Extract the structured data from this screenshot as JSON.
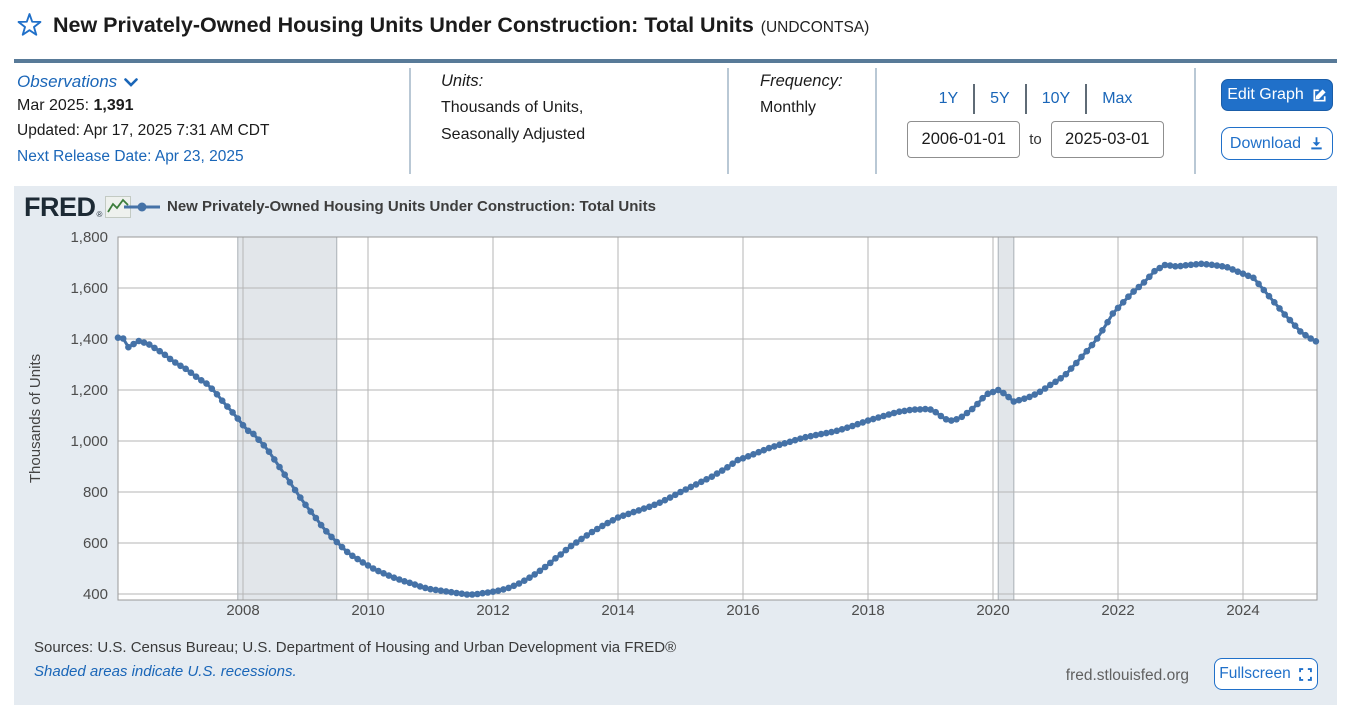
{
  "header": {
    "title": "New Privately-Owned Housing Units Under Construction: Total Units",
    "series_id": "(UNDCONTSA)"
  },
  "observations": {
    "label": "Observations",
    "latest_date": "Mar 2025:",
    "latest_value": "1,391",
    "updated": "Updated: Apr 17, 2025 7:31 AM CDT",
    "next_release": "Next Release Date: Apr 23, 2025"
  },
  "units": {
    "label": "Units:",
    "line1": "Thousands of Units,",
    "line2": "Seasonally Adjusted"
  },
  "frequency": {
    "label": "Frequency:",
    "value": "Monthly"
  },
  "ranges": [
    "1Y",
    "5Y",
    "10Y",
    "Max"
  ],
  "date_range": {
    "from": "2006-01-01",
    "to_label": "to",
    "to": "2025-03-01"
  },
  "actions": {
    "edit_graph": "Edit Graph",
    "download": "Download"
  },
  "branding": {
    "logo": "FRED",
    "registered": "®"
  },
  "footer": {
    "sources": "Sources: U.S. Census Bureau; U.S. Department of Housing and Urban Development via FRED®",
    "recession_note": "Shaded areas indicate U.S. recessions.",
    "site": "fred.stlouisfed.org",
    "fullscreen": "Fullscreen"
  },
  "colors": {
    "accent_blue": "#2070c9",
    "link_blue": "#1a66b8",
    "line_blue": "#4572a7",
    "panel_bg": "#e5ebf1",
    "recession_band": "#e2e6ea",
    "gridline": "#b6b6b6"
  },
  "chart_data": {
    "type": "line",
    "title": "New Privately-Owned Housing Units Under Construction: Total Units",
    "ylabel": "Thousands of Units",
    "xlabel": "",
    "x_start": "2006-01",
    "x_end": "2025-03",
    "frequency": "monthly",
    "ylim": [
      400,
      1800
    ],
    "y_ticks": [
      400,
      600,
      800,
      1000,
      1200,
      1400,
      1600,
      1800
    ],
    "x_ticks": [
      2008,
      2010,
      2012,
      2014,
      2016,
      2018,
      2020,
      2022,
      2024
    ],
    "grid": true,
    "legend_position": "top",
    "line_color": "#4572a7",
    "recessions": [
      {
        "start": "2007-12",
        "end": "2009-06"
      },
      {
        "start": "2020-02",
        "end": "2020-04"
      }
    ],
    "values": [
      1405,
      1402,
      1368,
      1380,
      1392,
      1386,
      1378,
      1365,
      1352,
      1338,
      1322,
      1308,
      1295,
      1283,
      1268,
      1252,
      1238,
      1225,
      1205,
      1183,
      1158,
      1135,
      1112,
      1088,
      1062,
      1040,
      1028,
      1005,
      983,
      958,
      928,
      898,
      868,
      838,
      808,
      778,
      750,
      723,
      698,
      670,
      646,
      624,
      604,
      584,
      565,
      550,
      537,
      524,
      512,
      500,
      490,
      481,
      472,
      464,
      457,
      450,
      444,
      437,
      430,
      424,
      419,
      416,
      413,
      410,
      407,
      404,
      401,
      398,
      398,
      400,
      403,
      406,
      409,
      413,
      418,
      424,
      432,
      441,
      452,
      464,
      477,
      491,
      506,
      522,
      540,
      555,
      572,
      588,
      602,
      616,
      630,
      643,
      655,
      667,
      678,
      689,
      700,
      707,
      714,
      721,
      728,
      735,
      742,
      750,
      758,
      768,
      778,
      789,
      800,
      810,
      820,
      830,
      840,
      850,
      860,
      872,
      884,
      897,
      911,
      925,
      932,
      940,
      948,
      956,
      964,
      972,
      979,
      985,
      991,
      997,
      1003,
      1009,
      1015,
      1019,
      1023,
      1027,
      1031,
      1035,
      1040,
      1046,
      1052,
      1059,
      1066,
      1073,
      1080,
      1086,
      1092,
      1098,
      1104,
      1110,
      1115,
      1118,
      1121,
      1123,
      1124,
      1125,
      1123,
      1113,
      1098,
      1085,
      1080,
      1085,
      1095,
      1110,
      1125,
      1145,
      1168,
      1185,
      1192,
      1200,
      1188,
      1172,
      1155,
      1160,
      1166,
      1173,
      1182,
      1193,
      1206,
      1220,
      1232,
      1246,
      1262,
      1284,
      1306,
      1330,
      1352,
      1376,
      1402,
      1434,
      1466,
      1500,
      1522,
      1544,
      1566,
      1586,
      1604,
      1622,
      1644,
      1666,
      1678,
      1690,
      1688,
      1685,
      1686,
      1689,
      1691,
      1693,
      1695,
      1693,
      1691,
      1688,
      1685,
      1681,
      1673,
      1664,
      1656,
      1648,
      1640,
      1616,
      1592,
      1568,
      1544,
      1520,
      1496,
      1474,
      1452,
      1430,
      1415,
      1402,
      1391
    ]
  }
}
